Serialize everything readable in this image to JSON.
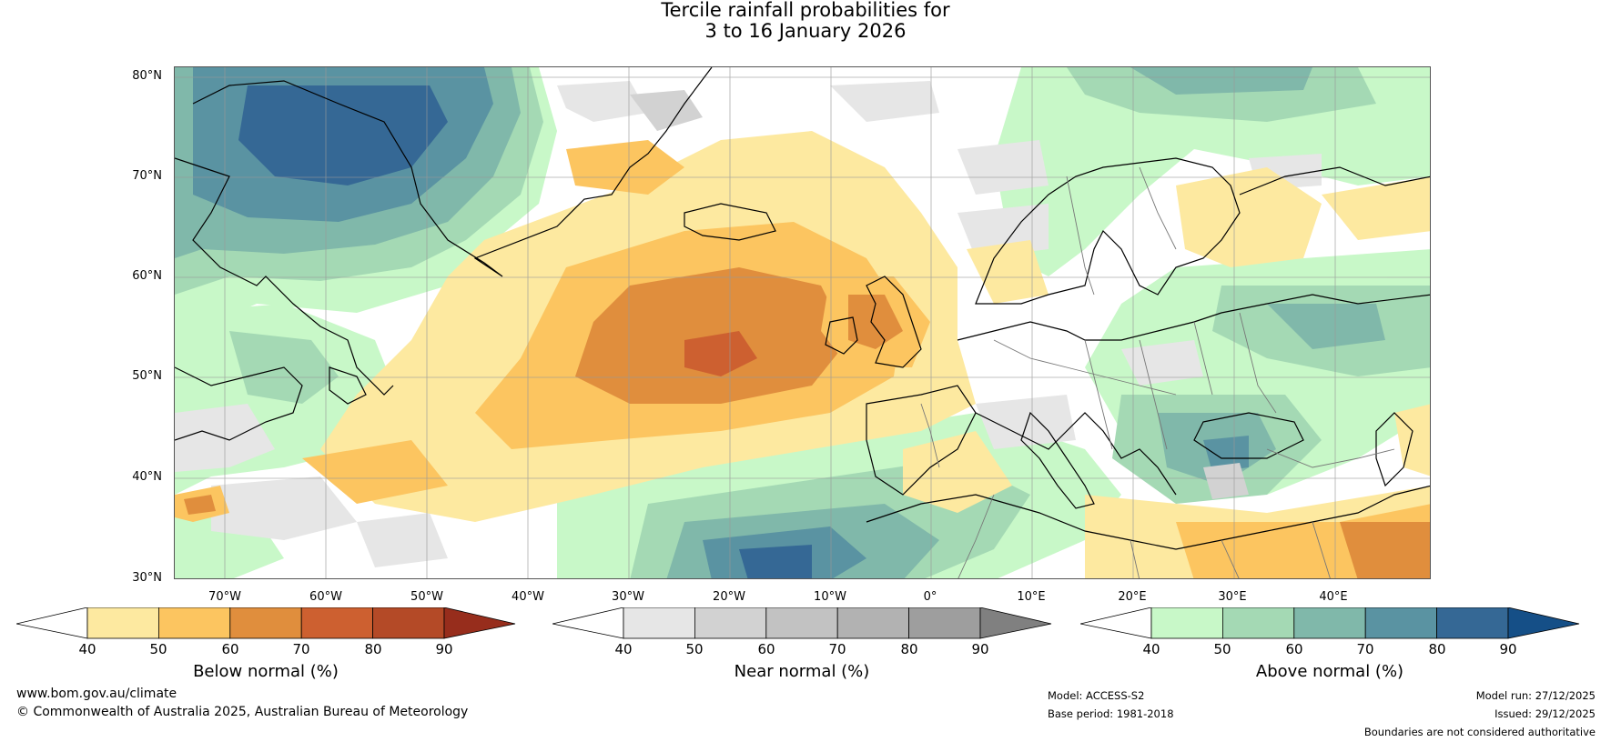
{
  "title": {
    "line1": "Tercile rainfall probabilities for",
    "line2": "3 to 16 January 2026"
  },
  "map": {
    "region": "North Atlantic and Europe",
    "lat_labels": [
      "80°N",
      "70°N",
      "60°N",
      "50°N",
      "40°N",
      "30°N"
    ],
    "lon_labels": [
      "70°W",
      "60°W",
      "50°W",
      "40°W",
      "30°W",
      "20°W",
      "10°W",
      "0°",
      "10°E",
      "20°E",
      "30°E",
      "40°E"
    ]
  },
  "colorbars": [
    {
      "label": "Below normal (%)",
      "ticks": [
        "40",
        "50",
        "60",
        "70",
        "80",
        "90"
      ],
      "colors": [
        "#ffffff",
        "#fde9a0",
        "#fcc560",
        "#e08e3d",
        "#cd6030",
        "#b44a27",
        "#972d1c"
      ]
    },
    {
      "label": "Near normal (%)",
      "ticks": [
        "40",
        "50",
        "60",
        "70",
        "80",
        "90"
      ],
      "colors": [
        "#ffffff",
        "#e6e6e6",
        "#d2d2d2",
        "#c2c2c2",
        "#b2b2b2",
        "#9e9e9e",
        "#808080"
      ]
    },
    {
      "label": "Above normal (%)",
      "ticks": [
        "40",
        "50",
        "60",
        "70",
        "80",
        "90"
      ],
      "colors": [
        "#ffffff",
        "#c8f8c8",
        "#a4d9b4",
        "#80b8aa",
        "#5a93a2",
        "#356895",
        "#154f87"
      ]
    }
  ],
  "footer": {
    "website": "www.bom.gov.au/climate",
    "copyright": "© Commonwealth of Australia 2025, Australian Bureau of Meteorology",
    "model": "Model: ACCESS-S2",
    "base_period": "Base period: 1981-2018",
    "model_run": "Model run: 27/12/2025",
    "issued": "Issued: 29/12/2025",
    "disclaimer": "Boundaries are not considered authoritative"
  }
}
